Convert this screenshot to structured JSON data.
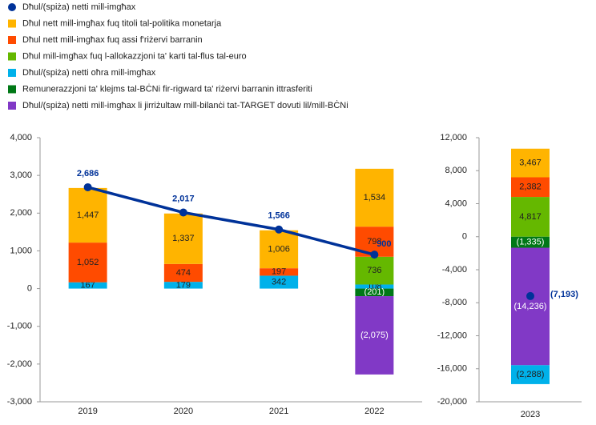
{
  "chart_data": [
    {
      "type": "bar",
      "categories": [
        "2019",
        "2020",
        "2021",
        "2022"
      ],
      "ylim": [
        -3000,
        4000
      ],
      "yticks": [
        {
          "value": -3000,
          "label": "-3,000"
        },
        {
          "value": -2000,
          "label": "-2,000"
        },
        {
          "value": -1000,
          "label": "-1,000"
        },
        0,
        {
          "value": 1000,
          "label": "1,000"
        },
        {
          "value": 2000,
          "label": "2,000"
        },
        {
          "value": 3000,
          "label": "3,000"
        },
        {
          "value": 4000,
          "label": "4,000"
        }
      ],
      "series": [
        {
          "name": "Dħul/(spiża) netti mill-imgħax",
          "type": "line",
          "color": "#003299",
          "values": [
            2686,
            2017,
            1566,
            900
          ],
          "value_labels": [
            "2,686",
            "2,017",
            "1,566",
            "900"
          ]
        },
        {
          "name": "Dħul nett mill-imgħax fuq titoli tal-politika monetarja",
          "color": "#FFB400",
          "values": [
            1447,
            1337,
            1006,
            1534
          ],
          "value_labels": [
            "1,447",
            "1,337",
            "1,006",
            "1,534"
          ]
        },
        {
          "name": "Dħul nett mill-imgħax fuq assi f'riżervi barranin",
          "color": "#FF4B00",
          "values": [
            1052,
            474,
            197,
            798
          ],
          "value_labels": [
            "1,052",
            "474",
            "197",
            "798"
          ]
        },
        {
          "name": "Dħul mill-imgħax fuq l-allokazzjoni ta' karti tal-flus tal-euro",
          "color": "#65B800",
          "values": [
            null,
            null,
            null,
            736
          ],
          "value_labels": [
            null,
            null,
            null,
            "736"
          ]
        },
        {
          "name": "Dħul/(spiża) netti oħra mill-imgħax",
          "color": "#00B1EA",
          "values": [
            167,
            179,
            342,
            108
          ],
          "value_labels": [
            "167",
            "179",
            "342",
            "108"
          ]
        },
        {
          "name": "Remunerazzjoni ta' klejms tal-BĊNi fir-rigward ta' riżervi barranin ittrasferiti",
          "color": "#007816",
          "values": [
            null,
            null,
            null,
            -201
          ],
          "value_labels": [
            null,
            null,
            null,
            "(201)"
          ]
        },
        {
          "name": "Dħul/(spiża) netti mill-imgħax li jirriżultaw mill-bilanċi tat-TARGET dovuti lil/mill-BĊNi",
          "color": "#8139C6",
          "values": [
            null,
            null,
            null,
            -2075
          ],
          "value_labels": [
            null,
            null,
            null,
            "(2,075)"
          ]
        }
      ]
    },
    {
      "type": "bar",
      "categories": [
        "2023"
      ],
      "ylim": [
        -20000,
        12000
      ],
      "yticks": [
        {
          "value": -20000,
          "label": "-20,000"
        },
        {
          "value": -16000,
          "label": "-16,000"
        },
        {
          "value": -12000,
          "label": "-12,000"
        },
        {
          "value": -8000,
          "label": "-8,000"
        },
        {
          "value": -4000,
          "label": "-4,000"
        },
        0,
        {
          "value": 4000,
          "label": "4,000"
        },
        {
          "value": 8000,
          "label": "8,000"
        },
        {
          "value": 12000,
          "label": "12,000"
        }
      ],
      "series": [
        {
          "type": "line",
          "color": "#003299",
          "values": [
            -7193
          ],
          "value_labels": [
            "(7,193)"
          ]
        },
        {
          "color": "#FFB400",
          "values": [
            3467
          ],
          "value_labels": [
            "3,467"
          ]
        },
        {
          "color": "#FF4B00",
          "values": [
            2382
          ],
          "value_labels": [
            "2,382"
          ]
        },
        {
          "color": "#65B800",
          "values": [
            4817
          ],
          "value_labels": [
            "4,817"
          ]
        },
        {
          "color": "#00B1EA",
          "values": [
            -2288
          ],
          "value_labels": [
            "(2,288)"
          ]
        },
        {
          "color": "#007816",
          "values": [
            -1335
          ],
          "value_labels": [
            "(1,335)"
          ]
        },
        {
          "color": "#8139C6",
          "values": [
            -14236
          ],
          "value_labels": [
            "(14,236)"
          ]
        }
      ]
    }
  ]
}
